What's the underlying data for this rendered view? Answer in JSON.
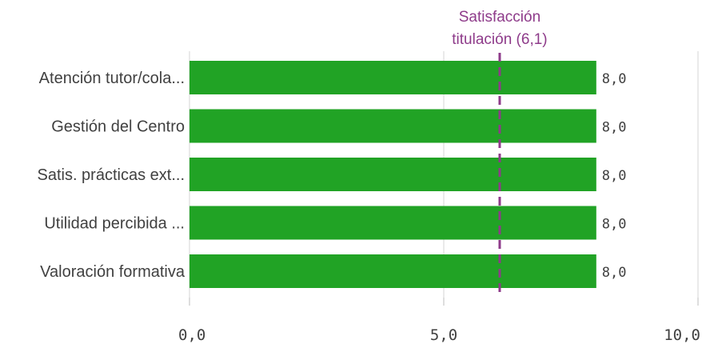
{
  "chart_data": {
    "type": "bar",
    "orientation": "horizontal",
    "categories": [
      "Atención tutor/cola...",
      "Gestión del Centro",
      "Satis. prácticas ext...",
      "Utilidad percibida ...",
      "Valoración formativa"
    ],
    "values": [
      8.0,
      8.0,
      8.0,
      8.0,
      8.0
    ],
    "value_labels": [
      "8,0",
      "8,0",
      "8,0",
      "8,0",
      "8,0"
    ],
    "xlim": [
      0,
      10
    ],
    "x_ticks": [
      0,
      5,
      10
    ],
    "x_tick_labels": [
      "0,0",
      "5,0",
      "10,0"
    ],
    "grid": true,
    "bar_color": "#21a325",
    "reference_line": {
      "value": 6.1,
      "label_line1": "Satisfacción",
      "label_line2": "titulación (6,1)",
      "color": "#8e3b8a",
      "style": "dashed"
    }
  }
}
